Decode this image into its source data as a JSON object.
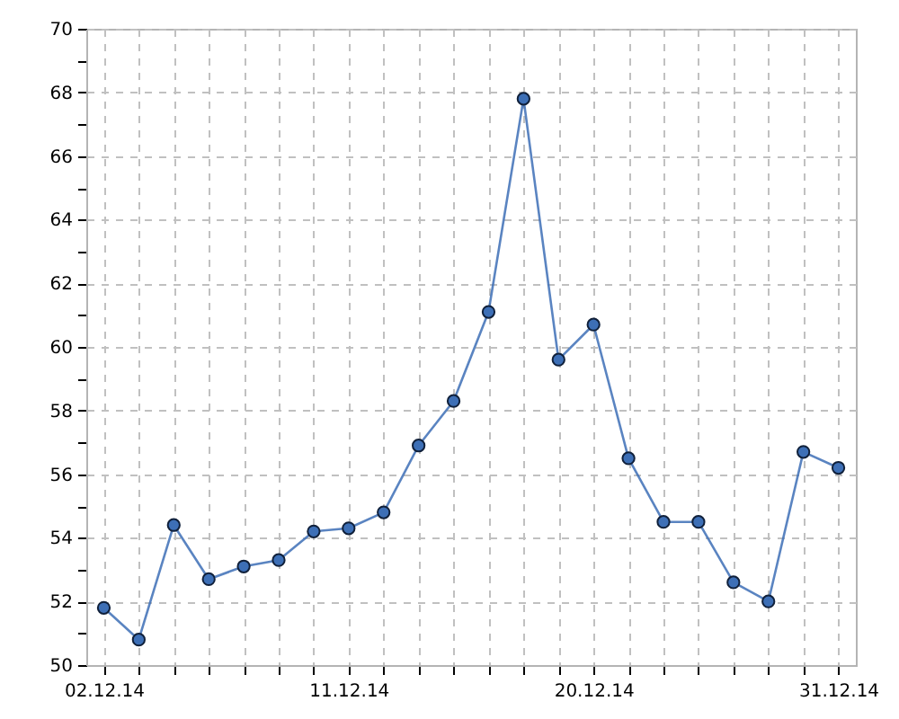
{
  "chart_data": {
    "type": "line",
    "categories": [
      "02.12.14",
      null,
      null,
      null,
      null,
      null,
      null,
      "11.12.14",
      null,
      null,
      null,
      null,
      null,
      null,
      "20.12.14",
      null,
      null,
      null,
      null,
      null,
      null,
      "31.12.14"
    ],
    "series": [
      {
        "color": "#3d6fb6",
        "values": [
          51.8,
          50.8,
          54.4,
          52.7,
          53.1,
          53.3,
          54.2,
          54.3,
          54.8,
          56.9,
          58.3,
          61.1,
          67.8,
          59.6,
          60.7,
          56.5,
          54.5,
          54.5,
          52.6,
          52.0,
          56.7,
          56.2
        ]
      }
    ],
    "ylim": [
      50,
      70
    ],
    "yticks": [
      50,
      {
        "value": 51,
        "label": null
      },
      52,
      {
        "value": 53,
        "label": null
      },
      54,
      {
        "value": 55,
        "label": null
      },
      56,
      {
        "value": 57,
        "label": null
      },
      58,
      {
        "value": 59,
        "label": null
      },
      60,
      {
        "value": 61,
        "label": null
      },
      62,
      {
        "value": 63,
        "label": null
      },
      64,
      {
        "value": 65,
        "label": null
      },
      66,
      {
        "value": 67,
        "label": null
      },
      68,
      {
        "value": 69,
        "label": null
      },
      70
    ],
    "grid": true,
    "marker": "circle",
    "line_style": "solid"
  }
}
